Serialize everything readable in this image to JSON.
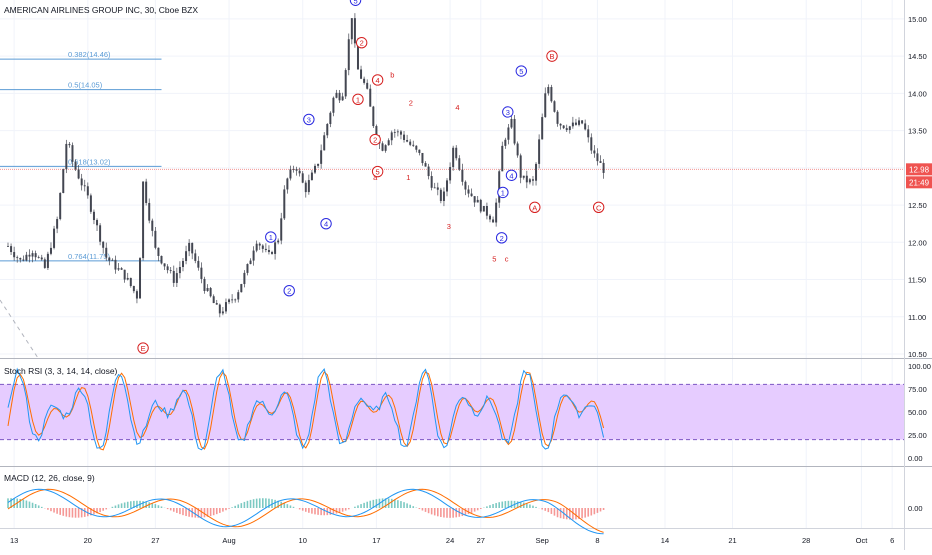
{
  "chart_data": {
    "type": "candlestick",
    "title": "AMERICAN AIRLINES GROUP INC, 30, Cboe BZX",
    "price_axis": {
      "ylim": [
        10.5,
        15.2
      ],
      "ticks": [
        "15.00",
        "14.50",
        "14.00",
        "13.50",
        "13.00",
        "12.50",
        "12.00",
        "11.50",
        "11.00",
        "10.50"
      ],
      "current_price_label": "12.98",
      "countdown_label": "21:49",
      "current_price": 12.98
    },
    "time_axis": {
      "ticks": [
        "13",
        "20",
        "27",
        "Aug",
        "10",
        "17",
        "24",
        "27",
        "Sep",
        "8",
        "14",
        "21",
        "28",
        "Oct",
        "6"
      ]
    },
    "fib_levels": [
      {
        "label": "0.382(14.46)",
        "value": 14.46
      },
      {
        "label": "0.5(14.05)",
        "value": 14.05
      },
      {
        "label": "0.618(13.02)",
        "value": 13.02
      },
      {
        "label": "0.764(11.75)",
        "value": 11.75
      }
    ],
    "wave_labels": [
      {
        "text": "1",
        "style": "circle",
        "color": "#2a2ae0",
        "x_day": 21.4,
        "price": 12.07
      },
      {
        "text": "2",
        "style": "circle",
        "color": "#2a2ae0",
        "x_day": 22.9,
        "price": 11.35
      },
      {
        "text": "3",
        "style": "circle",
        "color": "#2a2ae0",
        "x_day": 24.5,
        "price": 13.65
      },
      {
        "text": "4",
        "style": "circle",
        "color": "#2a2ae0",
        "x_day": 25.9,
        "price": 12.25
      },
      {
        "text": "5",
        "style": "circle",
        "color": "#2a2ae0",
        "x_day": 28.3,
        "price": 15.25
      },
      {
        "text": "1",
        "style": "circle",
        "color": "#d62020",
        "x_day": 28.5,
        "price": 13.92
      },
      {
        "text": "2",
        "style": "circle",
        "color": "#d62020",
        "x_day": 28.8,
        "price": 14.68
      },
      {
        "text": "4",
        "style": "circle",
        "color": "#d62020",
        "x_day": 30.1,
        "price": 14.18
      },
      {
        "text": "2",
        "style": "circle",
        "color": "#d62020",
        "x_day": 29.9,
        "price": 13.38
      },
      {
        "text": "5",
        "style": "circle",
        "color": "#d62020",
        "x_day": 30.1,
        "price": 12.95
      },
      {
        "text": "a",
        "style": "plain",
        "color": "#d62020",
        "x_day": 29.9,
        "price": 12.88
      },
      {
        "text": "b",
        "style": "plain",
        "color": "#d62020",
        "x_day": 31.3,
        "price": 14.25
      },
      {
        "text": "2",
        "style": "plain",
        "color": "#d62020",
        "x_day": 32.8,
        "price": 13.88
      },
      {
        "text": "1",
        "style": "plain",
        "color": "#d62020",
        "x_day": 32.6,
        "price": 12.88
      },
      {
        "text": "4",
        "style": "plain",
        "color": "#d62020",
        "x_day": 36.6,
        "price": 13.82
      },
      {
        "text": "3",
        "style": "plain",
        "color": "#d62020",
        "x_day": 35.9,
        "price": 12.22
      },
      {
        "text": "5",
        "style": "plain",
        "color": "#d62020",
        "x_day": 39.6,
        "price": 11.78
      },
      {
        "text": "c",
        "style": "plain",
        "color": "#d62020",
        "x_day": 40.6,
        "price": 11.78
      },
      {
        "text": "3",
        "style": "circle",
        "color": "#2a2ae0",
        "x_day": 40.7,
        "price": 13.75
      },
      {
        "text": "5",
        "style": "circle",
        "color": "#2a2ae0",
        "x_day": 41.8,
        "price": 14.3
      },
      {
        "text": "4",
        "style": "circle",
        "color": "#2a2ae0",
        "x_day": 41.0,
        "price": 12.9
      },
      {
        "text": "1",
        "style": "circle",
        "color": "#2a2ae0",
        "x_day": 40.3,
        "price": 12.67
      },
      {
        "text": "2",
        "style": "circle",
        "color": "#2a2ae0",
        "x_day": 40.2,
        "price": 12.06
      },
      {
        "text": "A",
        "style": "circle",
        "color": "#d62020",
        "x_day": 42.9,
        "price": 12.47
      },
      {
        "text": "B",
        "style": "circle",
        "color": "#d62020",
        "x_day": 44.3,
        "price": 14.5
      },
      {
        "text": "C",
        "style": "circle",
        "color": "#d62020",
        "x_day": 48.1,
        "price": 12.47
      },
      {
        "text": "E",
        "style": "circle",
        "color": "#d62020",
        "x_day": 11.0,
        "price": 10.58
      }
    ],
    "stoch_rsi": {
      "label": "Stoch RSI (3, 3, 14, 14, close)",
      "ylim": [
        0,
        100
      ],
      "ticks": [
        "100.00",
        "75.00",
        "50.00",
        "25.00",
        "0.00"
      ],
      "band": [
        20,
        80
      ]
    },
    "macd": {
      "label": "MACD (12, 26, close, 9)",
      "ticks": [
        "0.00"
      ]
    },
    "colors": {
      "up": "#26a69a",
      "down": "#ef5350",
      "candle": "#434651",
      "wave_blue": "#2a2ae0",
      "wave_red": "#d62020",
      "fib": "#5b9bd5",
      "band_fill": "#e6ccff",
      "k_line": "#2196f3",
      "d_line": "#ff6d00"
    }
  }
}
